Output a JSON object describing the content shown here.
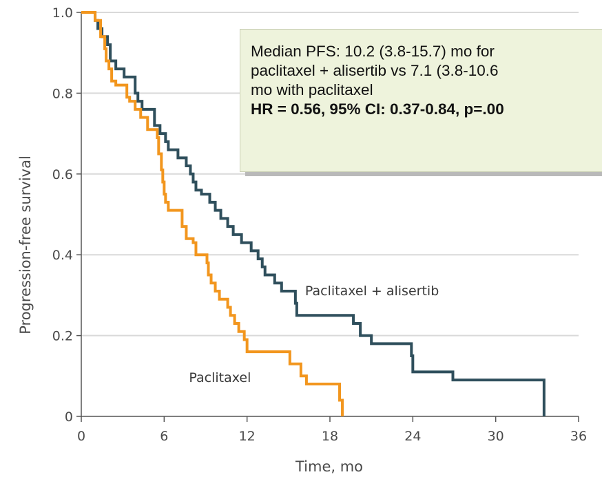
{
  "chart_data": {
    "type": "line",
    "subtype": "kaplan-meier step",
    "xlabel": "Time, mo",
    "ylabel": "Progression-free survival",
    "xlim": [
      0,
      36
    ],
    "ylim": [
      0,
      1.0
    ],
    "x_ticks": [
      0,
      6,
      12,
      18,
      24,
      30,
      36
    ],
    "x_tick_labels": [
      "0",
      "6",
      "12",
      "18",
      "24",
      "30",
      "36"
    ],
    "y_ticks": [
      0,
      0.2,
      0.4,
      0.6,
      0.8,
      1.0
    ],
    "y_tick_labels": [
      "0",
      "0.2",
      "0.4",
      "0.6",
      "0.8",
      "1.0"
    ],
    "grid": "horizontal",
    "series": [
      {
        "name": "Paclitaxel + alisertib",
        "color": "#2f4f5c",
        "points": [
          [
            0,
            1.0
          ],
          [
            1.0,
            0.98
          ],
          [
            1.2,
            0.96
          ],
          [
            1.5,
            0.94
          ],
          [
            1.9,
            0.92
          ],
          [
            2.1,
            0.88
          ],
          [
            2.5,
            0.86
          ],
          [
            3.1,
            0.84
          ],
          [
            3.9,
            0.8
          ],
          [
            4.1,
            0.78
          ],
          [
            4.4,
            0.76
          ],
          [
            5.3,
            0.72
          ],
          [
            5.7,
            0.7
          ],
          [
            6.1,
            0.68
          ],
          [
            6.3,
            0.66
          ],
          [
            7.0,
            0.64
          ],
          [
            7.6,
            0.62
          ],
          [
            7.9,
            0.6
          ],
          [
            8.1,
            0.58
          ],
          [
            8.3,
            0.56
          ],
          [
            8.7,
            0.55
          ],
          [
            9.3,
            0.53
          ],
          [
            9.7,
            0.51
          ],
          [
            10.1,
            0.49
          ],
          [
            10.6,
            0.47
          ],
          [
            11.0,
            0.45
          ],
          [
            11.6,
            0.43
          ],
          [
            12.3,
            0.41
          ],
          [
            12.8,
            0.39
          ],
          [
            13.1,
            0.37
          ],
          [
            13.3,
            0.35
          ],
          [
            14.0,
            0.33
          ],
          [
            14.5,
            0.31
          ],
          [
            15.5,
            0.28
          ],
          [
            15.6,
            0.25
          ],
          [
            19.7,
            0.23
          ],
          [
            20.2,
            0.2
          ],
          [
            21.0,
            0.18
          ],
          [
            23.9,
            0.15
          ],
          [
            24.0,
            0.11
          ],
          [
            26.9,
            0.09
          ],
          [
            33.5,
            0.0
          ]
        ]
      },
      {
        "name": "Paclitaxel",
        "color": "#f2961e",
        "points": [
          [
            0,
            1.0
          ],
          [
            1.0,
            0.98
          ],
          [
            1.4,
            0.94
          ],
          [
            1.7,
            0.91
          ],
          [
            1.8,
            0.88
          ],
          [
            2.0,
            0.86
          ],
          [
            2.2,
            0.83
          ],
          [
            2.5,
            0.82
          ],
          [
            3.3,
            0.79
          ],
          [
            3.5,
            0.78
          ],
          [
            3.9,
            0.76
          ],
          [
            4.3,
            0.74
          ],
          [
            4.8,
            0.71
          ],
          [
            5.5,
            0.69
          ],
          [
            5.6,
            0.65
          ],
          [
            5.8,
            0.61
          ],
          [
            5.9,
            0.58
          ],
          [
            6.0,
            0.55
          ],
          [
            6.1,
            0.53
          ],
          [
            6.3,
            0.51
          ],
          [
            7.3,
            0.47
          ],
          [
            7.6,
            0.44
          ],
          [
            8.1,
            0.43
          ],
          [
            8.3,
            0.4
          ],
          [
            9.1,
            0.38
          ],
          [
            9.2,
            0.35
          ],
          [
            9.4,
            0.33
          ],
          [
            9.7,
            0.31
          ],
          [
            10.0,
            0.29
          ],
          [
            10.6,
            0.27
          ],
          [
            10.8,
            0.25
          ],
          [
            11.1,
            0.23
          ],
          [
            11.4,
            0.21
          ],
          [
            11.8,
            0.19
          ],
          [
            12.0,
            0.16
          ],
          [
            15.1,
            0.13
          ],
          [
            15.9,
            0.1
          ],
          [
            16.3,
            0.08
          ],
          [
            18.7,
            0.04
          ],
          [
            18.9,
            0.0
          ]
        ]
      }
    ],
    "annotation": {
      "line1": "Median PFS: 10.2 (3.8-15.7) mo for",
      "line2": "paclitaxel + alisertib vs 7.1 (3.8-10.6",
      "line3": "mo with paclitaxel",
      "line4": "HR = 0.56, 95% CI: 0.37-0.84, p=.00",
      "background": "#eef3dc"
    },
    "series_labels": {
      "alisertib": "Paclitaxel + alisertib",
      "paclitaxel": "Paclitaxel"
    }
  }
}
